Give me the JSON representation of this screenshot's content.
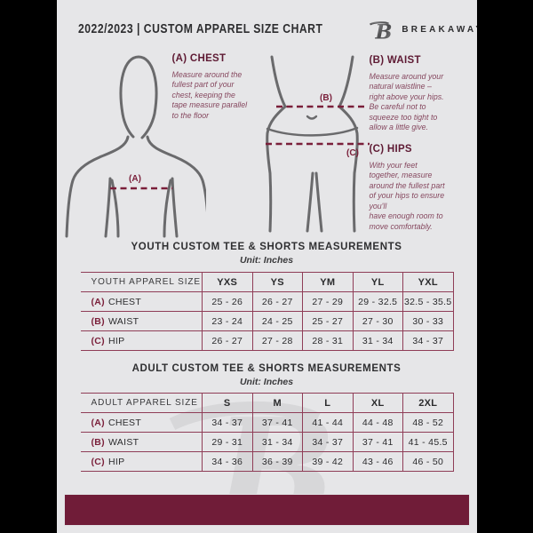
{
  "header": {
    "title": "2022/2023  |  CUSTOM APPAREL SIZE CHART",
    "brand": "BREAKAWAY",
    "logo": "breakaway-b-logo"
  },
  "colors": {
    "maroon_accent": "#701c38",
    "table_border": "#8f3d57",
    "guide_text": "#86485f",
    "heading_maroon": "#5e1a33",
    "body_outline_gray": "#6a6a6c",
    "page_background": "#e6e6e8",
    "outer_background": "#000000"
  },
  "diagram": {
    "labels": {
      "chest": "(A)",
      "waist": "(B)",
      "hips": "(C)"
    },
    "chest": {
      "heading": "(A) CHEST",
      "body": "Measure around the\nfullest part of your\nchest, keeping the\ntape measure parallel\nto the floor"
    },
    "waist": {
      "heading": "(B) WAIST",
      "body": "Measure around your\nnatural waistline –\nright above your hips.\nBe careful not to\nsqueeze too tight to\nallow a little give."
    },
    "hips": {
      "heading": "(C) HIPS",
      "body": "With your feet\ntogether, measure\naround the fullest part\nof your hips to ensure\nyou'll\nhave enough room to\nmove comfortably."
    }
  },
  "youth_section": {
    "title": "YOUTH CUSTOM TEE & SHORTS MEASUREMENTS",
    "unit": "Unit: Inches"
  },
  "adult_section": {
    "title": "ADULT CUSTOM TEE & SHORTS MEASUREMENTS",
    "unit": "Unit: Inches"
  },
  "youth_table": {
    "header": [
      "YOUTH APPAREL SIZE",
      "YXS",
      "YS",
      "YM",
      "YL",
      "YXL"
    ],
    "rows": [
      {
        "prefix": "(A)",
        "label": "CHEST",
        "values": [
          "25 - 26",
          "26 - 27",
          "27 - 29",
          "29 - 32.5",
          "32.5 - 35.5"
        ]
      },
      {
        "prefix": "(B)",
        "label": "WAIST",
        "values": [
          "23 - 24",
          "24 - 25",
          "25 - 27",
          "27 - 30",
          "30 - 33"
        ]
      },
      {
        "prefix": "(C)",
        "label": "HIP",
        "values": [
          "26 - 27",
          "27 - 28",
          "28 - 31",
          "31 - 34",
          "34 - 37"
        ]
      }
    ]
  },
  "adult_table": {
    "header": [
      "ADULT APPAREL SIZE",
      "S",
      "M",
      "L",
      "XL",
      "2XL"
    ],
    "rows": [
      {
        "prefix": "(A)",
        "label": "CHEST",
        "values": [
          "34 - 37",
          "37 - 41",
          "41 - 44",
          "44 - 48",
          "48 - 52"
        ]
      },
      {
        "prefix": "(B)",
        "label": "WAIST",
        "values": [
          "29 - 31",
          "31 - 34",
          "34 - 37",
          "37 - 41",
          "41 - 45.5"
        ]
      },
      {
        "prefix": "(C)",
        "label": "HIP",
        "values": [
          "34 - 36",
          "36 - 39",
          "39 - 42",
          "43 - 46",
          "46 - 50"
        ]
      }
    ]
  }
}
